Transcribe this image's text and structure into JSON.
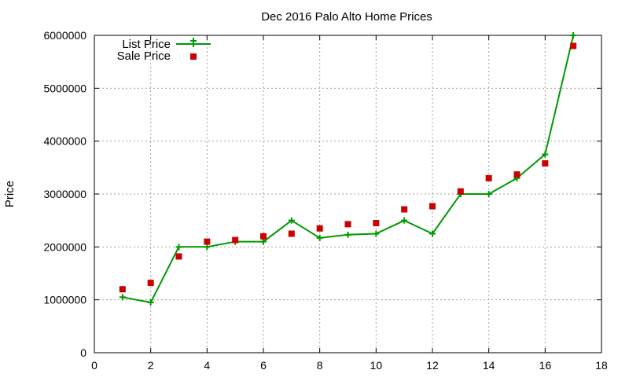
{
  "chart_data": {
    "type": "line",
    "title": "Dec 2016 Palo Alto Home Prices",
    "xlabel": "",
    "ylabel": "Price",
    "xlim": [
      0,
      18
    ],
    "ylim": [
      0,
      6000000
    ],
    "x_ticks": [
      0,
      2,
      4,
      6,
      8,
      10,
      12,
      14,
      16,
      18
    ],
    "y_ticks": [
      0,
      1000000,
      2000000,
      3000000,
      4000000,
      5000000,
      6000000
    ],
    "grid": true,
    "legend_position": "top-left",
    "series": [
      {
        "name": "List Price",
        "style": "line-plus",
        "color": "#009900",
        "x": [
          1,
          2,
          3,
          4,
          5,
          6,
          7,
          8,
          9,
          10,
          11,
          12,
          13,
          14,
          15,
          16,
          17
        ],
        "values": [
          1050000,
          950000,
          2000000,
          2000000,
          2100000,
          2100000,
          2500000,
          2170000,
          2230000,
          2250000,
          2500000,
          2250000,
          3000000,
          3000000,
          3300000,
          3750000,
          6000000
        ]
      },
      {
        "name": "Sale Price",
        "style": "square",
        "color": "#cc0000",
        "x": [
          1,
          2,
          3,
          4,
          5,
          6,
          7,
          8,
          9,
          10,
          11,
          12,
          13,
          14,
          15,
          16,
          17
        ],
        "values": [
          1200000,
          1320000,
          1820000,
          2100000,
          2130000,
          2200000,
          2250000,
          2350000,
          2430000,
          2450000,
          2710000,
          2770000,
          3050000,
          3300000,
          3370000,
          3580000,
          5800000
        ]
      }
    ]
  }
}
